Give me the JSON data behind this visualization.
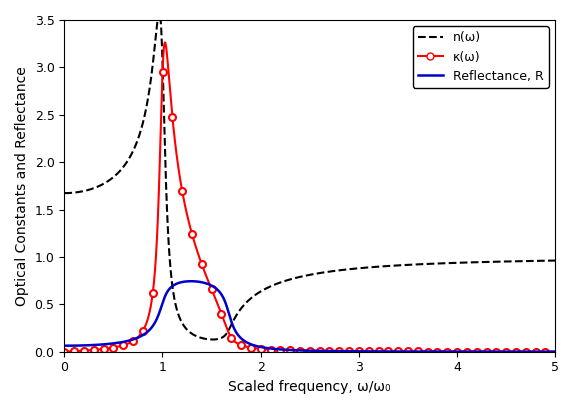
{
  "title": "",
  "xlabel": "Scaled frequency, ω/ω₀",
  "ylabel": "Optical Constants and Reflectance",
  "xlim": [
    0,
    5
  ],
  "ylim": [
    0,
    3.5
  ],
  "yticks": [
    0,
    0.5,
    1.0,
    1.5,
    2.0,
    2.5,
    3.0,
    3.5
  ],
  "xticks": [
    0,
    1,
    2,
    3,
    4,
    5
  ],
  "omega0": 1.0,
  "gamma": 0.1,
  "omega_p_sq": 1.0,
  "n_color": "#000000",
  "kappa_color": "#ff0000",
  "R_color": "#0000cc",
  "n_label": "n(ω)",
  "kappa_label": "κ(ω)",
  "R_label": "Reflectance, R",
  "legend_loc": "upper right",
  "background_color": "#ffffff",
  "figsize": [
    5.74,
    4.09
  ],
  "dpi": 100
}
